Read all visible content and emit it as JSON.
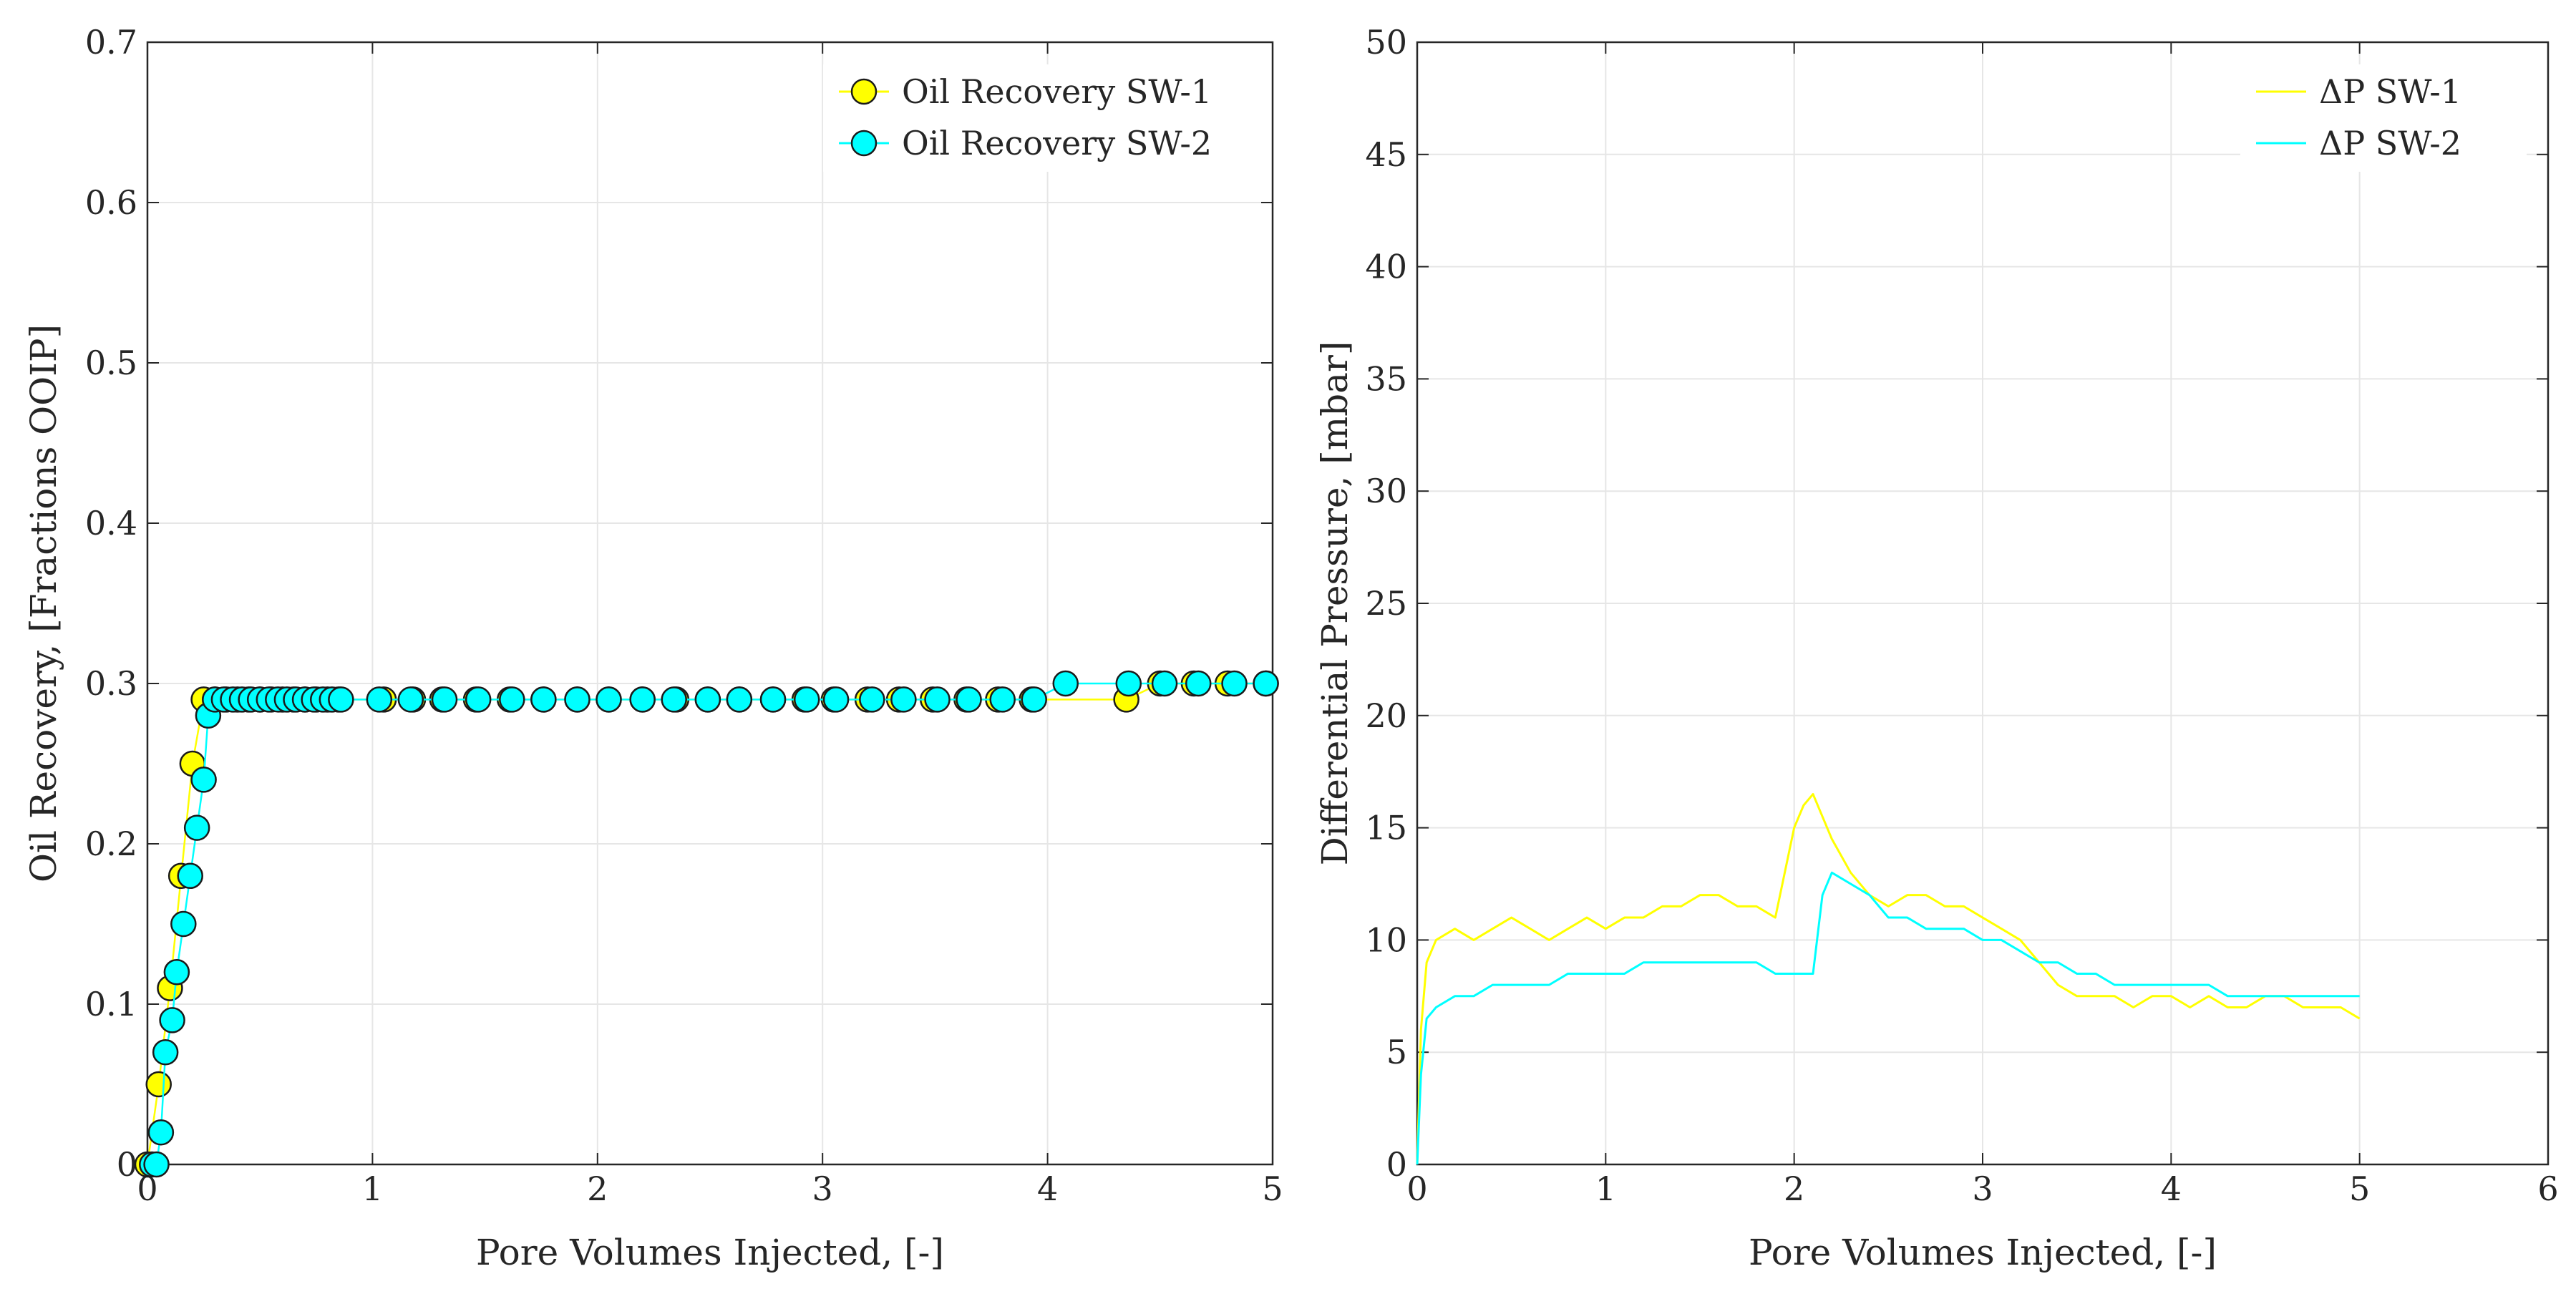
{
  "chart_data": [
    {
      "type": "line",
      "xlabel": "Pore Volumes Injected, [-]",
      "ylabel": "Oil Recovery, [Fractions OOIP]",
      "xlim": [
        0,
        5
      ],
      "ylim": [
        0,
        0.7
      ],
      "xticks": [
        "0",
        "1",
        "2",
        "3",
        "4",
        "5"
      ],
      "yticks": [
        "0",
        "0.1",
        "0.2",
        "0.3",
        "0.4",
        "0.5",
        "0.6",
        "0.7"
      ],
      "grid": true,
      "legend_location": "top-right",
      "series": [
        {
          "name": "Oil Recovery SW-1",
          "color": "#ffff00",
          "marker": "circle",
          "x": [
            0,
            0.05,
            0.1,
            0.15,
            0.2,
            0.25,
            0.3,
            0.35,
            0.4,
            0.45,
            0.5,
            0.55,
            0.6,
            0.65,
            0.7,
            0.75,
            0.8,
            0.85,
            1.05,
            1.18,
            1.31,
            1.46,
            1.61,
            1.76,
            1.91,
            2.05,
            2.2,
            2.35,
            2.49,
            2.63,
            2.78,
            2.92,
            3.05,
            3.2,
            3.34,
            3.49,
            3.64,
            3.78,
            3.93,
            4.35,
            4.5,
            4.65,
            4.8,
            4.97
          ],
          "y": [
            0,
            0.05,
            0.11,
            0.18,
            0.25,
            0.29,
            0.29,
            0.29,
            0.29,
            0.29,
            0.29,
            0.29,
            0.29,
            0.29,
            0.29,
            0.29,
            0.29,
            0.29,
            0.29,
            0.29,
            0.29,
            0.29,
            0.29,
            0.29,
            0.29,
            0.29,
            0.29,
            0.29,
            0.29,
            0.29,
            0.29,
            0.29,
            0.29,
            0.29,
            0.29,
            0.29,
            0.29,
            0.29,
            0.29,
            0.29,
            0.3,
            0.3,
            0.3,
            0.3
          ]
        },
        {
          "name": "Oil Recovery SW-2",
          "color": "#00ffff",
          "marker": "circle",
          "x": [
            0.02,
            0.04,
            0.06,
            0.08,
            0.11,
            0.13,
            0.16,
            0.19,
            0.22,
            0.25,
            0.27,
            0.3,
            0.34,
            0.38,
            0.42,
            0.46,
            0.5,
            0.54,
            0.58,
            0.62,
            0.66,
            0.7,
            0.74,
            0.78,
            0.82,
            0.86,
            1.03,
            1.17,
            1.32,
            1.47,
            1.62,
            1.76,
            1.91,
            2.05,
            2.2,
            2.34,
            2.49,
            2.63,
            2.78,
            2.93,
            3.06,
            3.22,
            3.36,
            3.51,
            3.65,
            3.8,
            3.94,
            4.08,
            4.36,
            4.52,
            4.67,
            4.83,
            4.97
          ],
          "y": [
            0,
            0,
            0.02,
            0.07,
            0.09,
            0.12,
            0.15,
            0.18,
            0.21,
            0.24,
            0.28,
            0.29,
            0.29,
            0.29,
            0.29,
            0.29,
            0.29,
            0.29,
            0.29,
            0.29,
            0.29,
            0.29,
            0.29,
            0.29,
            0.29,
            0.29,
            0.29,
            0.29,
            0.29,
            0.29,
            0.29,
            0.29,
            0.29,
            0.29,
            0.29,
            0.29,
            0.29,
            0.29,
            0.29,
            0.29,
            0.29,
            0.29,
            0.29,
            0.29,
            0.29,
            0.29,
            0.29,
            0.3,
            0.3,
            0.3,
            0.3,
            0.3,
            0.3
          ]
        }
      ]
    },
    {
      "type": "line",
      "xlabel": "Pore Volumes Injected, [-]",
      "ylabel": "Differential Pressure, [mbar]",
      "xlim": [
        0,
        6
      ],
      "ylim": [
        0,
        50
      ],
      "xticks": [
        "0",
        "1",
        "2",
        "3",
        "4",
        "5",
        "6"
      ],
      "yticks": [
        "0",
        "5",
        "10",
        "15",
        "20",
        "25",
        "30",
        "35",
        "40",
        "45",
        "50"
      ],
      "grid": true,
      "legend_location": "top-right",
      "series": [
        {
          "name": "ΔP SW-1",
          "color": "#ffff00",
          "x": [
            0,
            0.02,
            0.05,
            0.1,
            0.2,
            0.3,
            0.4,
            0.5,
            0.6,
            0.7,
            0.8,
            0.9,
            1.0,
            1.1,
            1.2,
            1.3,
            1.4,
            1.5,
            1.6,
            1.7,
            1.8,
            1.9,
            2.0,
            2.05,
            2.1,
            2.15,
            2.2,
            2.3,
            2.4,
            2.5,
            2.6,
            2.7,
            2.8,
            2.9,
            3.0,
            3.1,
            3.2,
            3.3,
            3.4,
            3.5,
            3.6,
            3.7,
            3.8,
            3.9,
            4.0,
            4.1,
            4.2,
            4.3,
            4.4,
            4.5,
            4.6,
            4.7,
            4.8,
            4.9,
            5.0
          ],
          "y": [
            0,
            6,
            9,
            10,
            10.5,
            10,
            10.5,
            11,
            10.5,
            10,
            10.5,
            11,
            10.5,
            11,
            11,
            11.5,
            11.5,
            12,
            12,
            11.5,
            11.5,
            11,
            15,
            16,
            16.5,
            15.5,
            14.5,
            13,
            12,
            11.5,
            12,
            12,
            11.5,
            11.5,
            11,
            10.5,
            10,
            9,
            8,
            7.5,
            7.5,
            7.5,
            7,
            7.5,
            7.5,
            7,
            7.5,
            7,
            7,
            7.5,
            7.5,
            7,
            7,
            7,
            6.5
          ]
        },
        {
          "name": "ΔP SW-2",
          "color": "#00ffff",
          "x": [
            0,
            0.02,
            0.05,
            0.1,
            0.2,
            0.3,
            0.4,
            0.5,
            0.6,
            0.7,
            0.8,
            0.9,
            1.0,
            1.1,
            1.2,
            1.3,
            1.4,
            1.5,
            1.6,
            1.7,
            1.8,
            1.9,
            2.0,
            2.05,
            2.1,
            2.15,
            2.2,
            2.3,
            2.4,
            2.5,
            2.6,
            2.7,
            2.8,
            2.9,
            3.0,
            3.1,
            3.2,
            3.3,
            3.4,
            3.5,
            3.6,
            3.7,
            3.8,
            3.9,
            4.0,
            4.1,
            4.2,
            4.3,
            4.4,
            4.5,
            4.6,
            4.7,
            4.8,
            4.9,
            5.0
          ],
          "y": [
            0,
            4,
            6.5,
            7,
            7.5,
            7.5,
            8,
            8,
            8,
            8,
            8.5,
            8.5,
            8.5,
            8.5,
            9,
            9,
            9,
            9,
            9,
            9,
            9,
            8.5,
            8.5,
            8.5,
            8.5,
            12,
            13,
            12.5,
            12,
            11,
            11,
            10.5,
            10.5,
            10.5,
            10,
            10,
            9.5,
            9,
            9,
            8.5,
            8.5,
            8,
            8,
            8,
            8,
            8,
            8,
            7.5,
            7.5,
            7.5,
            7.5,
            7.5,
            7.5,
            7.5,
            7.5
          ]
        }
      ]
    }
  ]
}
